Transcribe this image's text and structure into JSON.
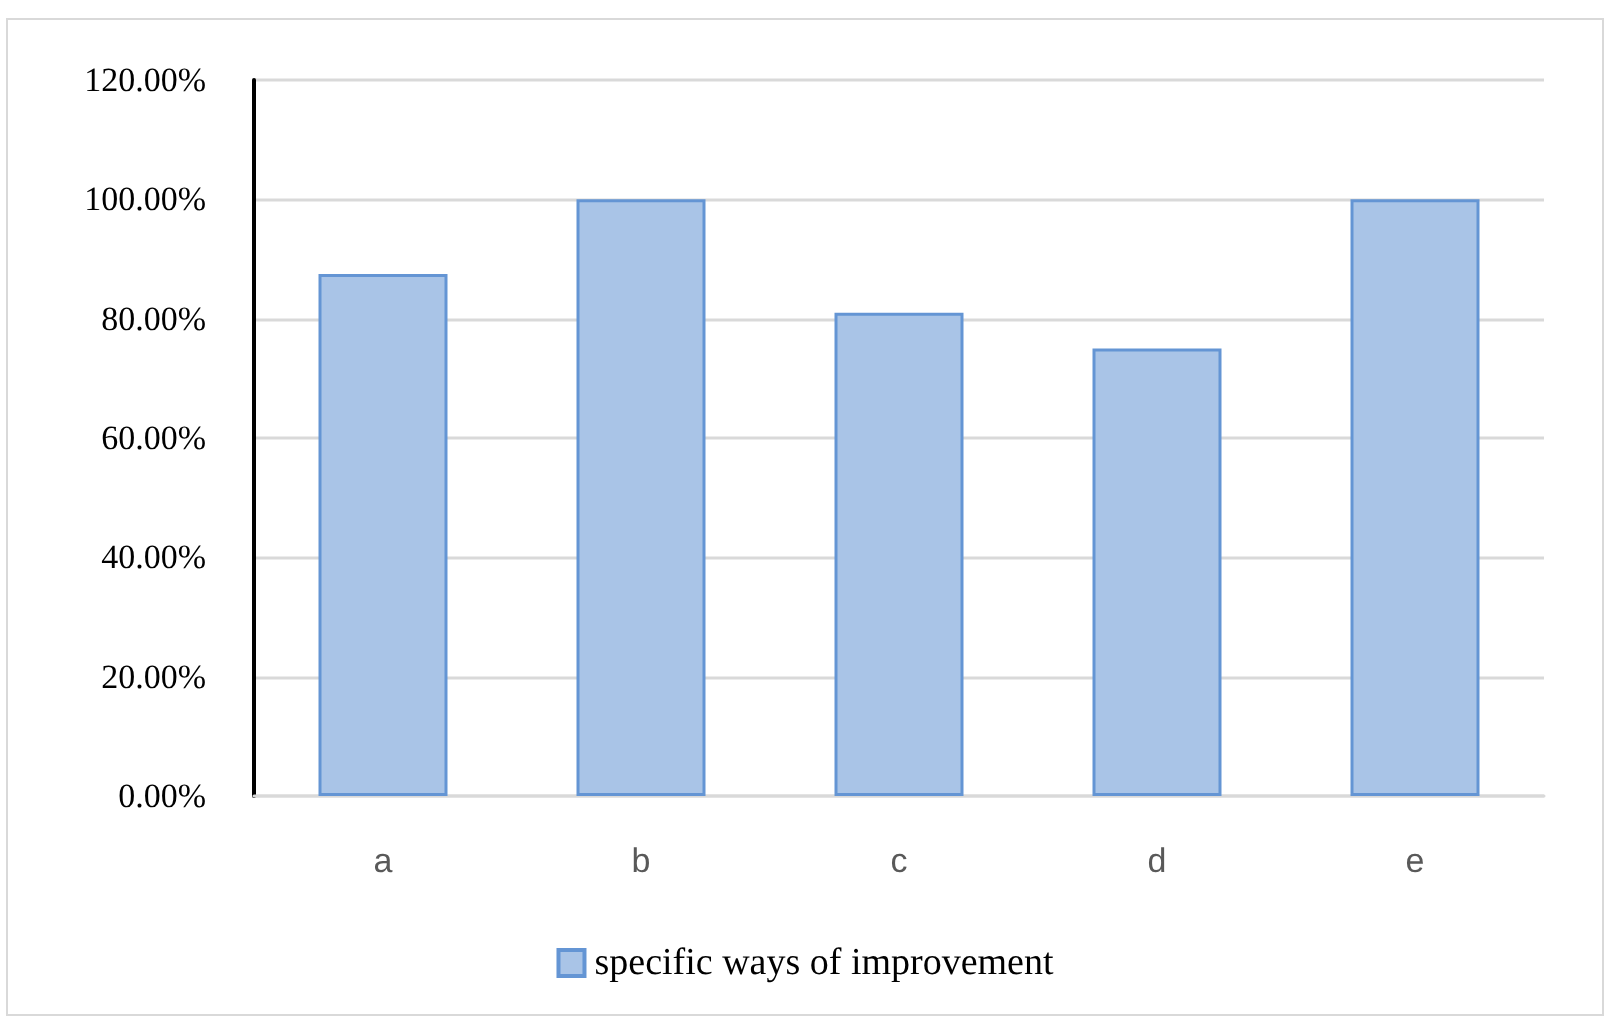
{
  "chart_data": {
    "type": "bar",
    "categories": [
      "a",
      "b",
      "c",
      "d",
      "e"
    ],
    "series": [
      {
        "name": "specific ways of improvement",
        "color": "#a9c4e7",
        "values": [
          87.5,
          100,
          81,
          75,
          100
        ]
      }
    ],
    "ylim": [
      0,
      120
    ],
    "yticks": [
      {
        "value": 0,
        "label": "0.00%"
      },
      {
        "value": 20,
        "label": "20.00%"
      },
      {
        "value": 40,
        "label": "40.00%"
      },
      {
        "value": 60,
        "label": "60.00%"
      },
      {
        "value": 80,
        "label": "80.00%"
      },
      {
        "value": 100,
        "label": "100.00%"
      },
      {
        "value": 120,
        "label": "120.00%"
      }
    ],
    "grid": "y",
    "legend": "bottom"
  }
}
